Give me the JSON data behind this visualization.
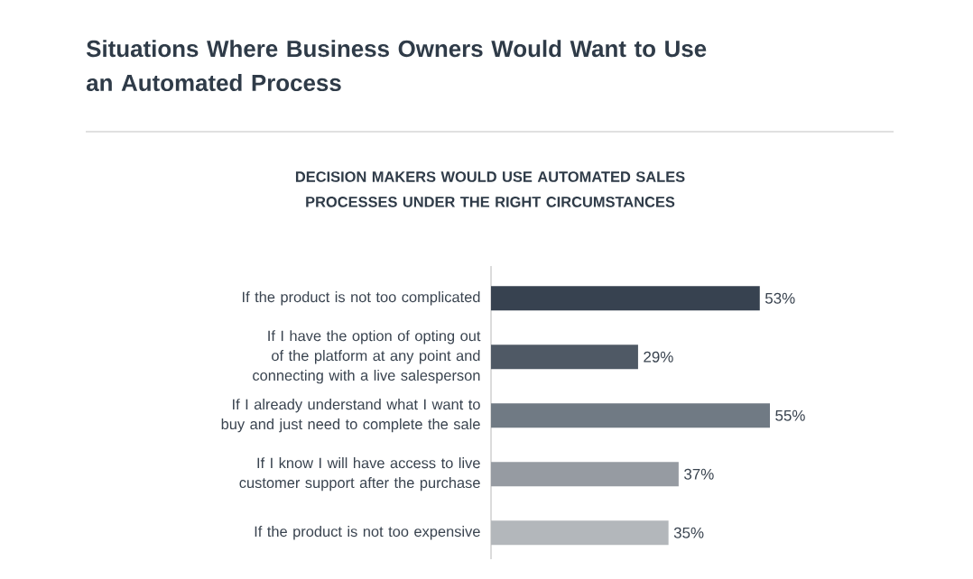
{
  "chart_data": {
    "type": "bar",
    "orientation": "horizontal",
    "title": "Situations Where Business Owners Would Want to Use an Automated Process",
    "subtitle": "DECISION MAKERS WOULD USE AUTOMATED SALES PROCESSES UNDER THE RIGHT CIRCUMSTANCES",
    "categories": [
      "If the product is not too complicated",
      "If I have the option of opting out of the platform at any point and connecting with a live salesperson",
      "If I already understand what I want to buy and just need to complete the sale",
      "If I know I will have access to live customer support after the purchase",
      "If the product is not too expensive"
    ],
    "values": [
      53,
      29,
      55,
      37,
      35
    ],
    "value_labels": [
      "53%",
      "29%",
      "55%",
      "37%",
      "35%"
    ],
    "colors": [
      "#374250",
      "#4f5965",
      "#707a84",
      "#969ba2",
      "#b3b7bb"
    ]
  }
}
